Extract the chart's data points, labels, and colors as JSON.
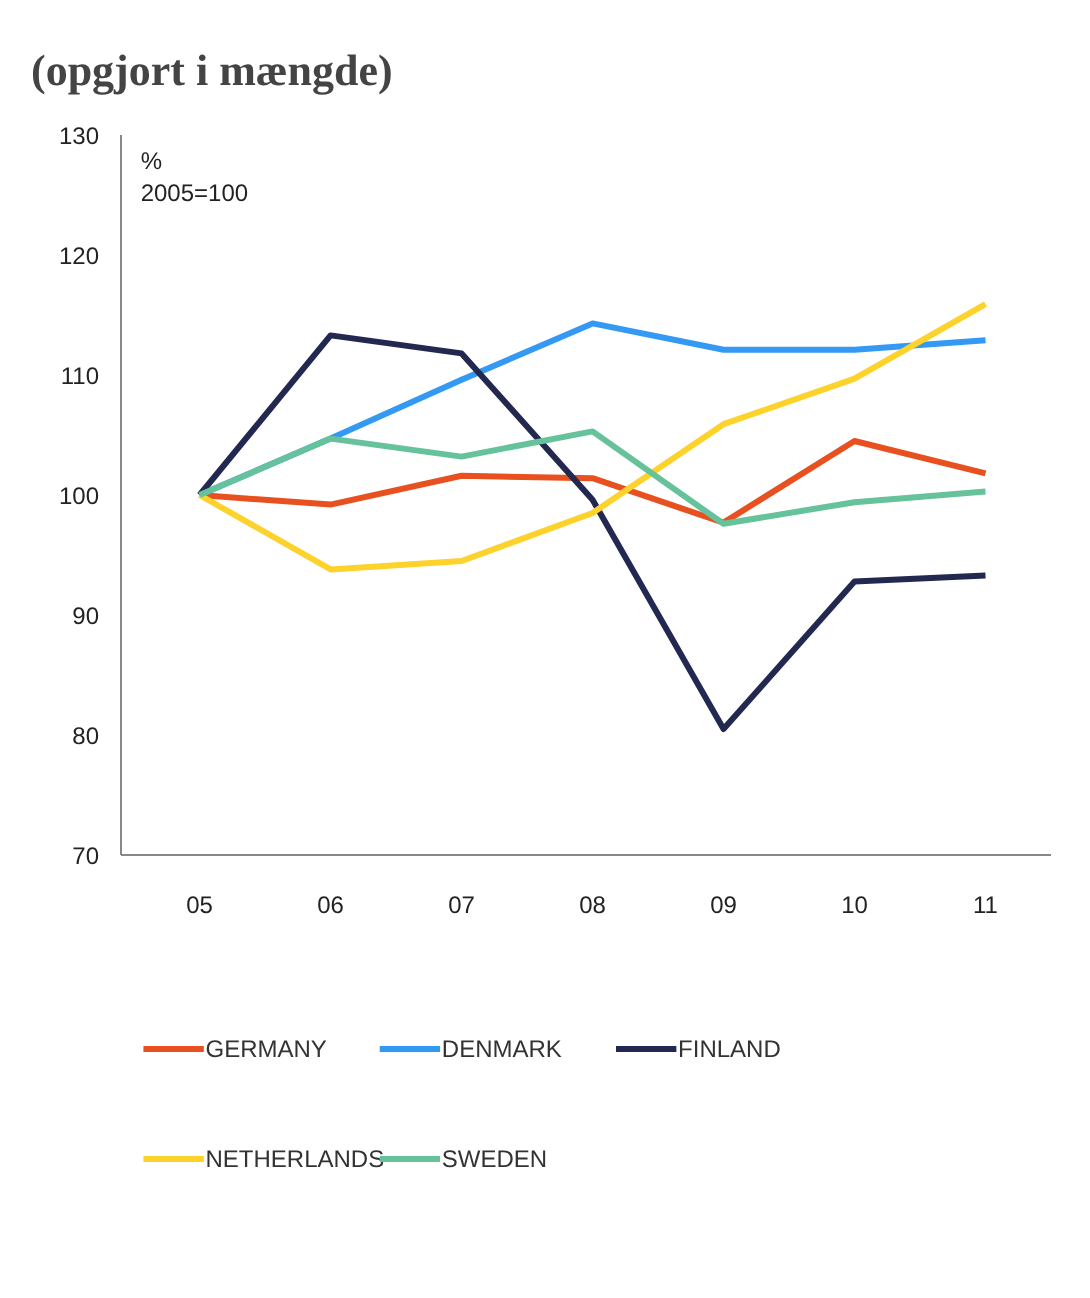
{
  "chart_data": {
    "type": "line",
    "title": "(opgjort i mængde)",
    "ylabel": "%",
    "annotations": [
      "2005=100"
    ],
    "categories": [
      "05",
      "06",
      "07",
      "08",
      "09",
      "10",
      "11"
    ],
    "series": [
      {
        "name": "GERMANY",
        "color": "#e8501f",
        "values": [
          100,
          99.2,
          101.6,
          101.4,
          97.7,
          104.5,
          101.8
        ]
      },
      {
        "name": "DENMARK",
        "color": "#3399f3",
        "values": [
          100,
          104.7,
          109.6,
          114.3,
          112.1,
          112.1,
          112.9
        ]
      },
      {
        "name": "FINLAND",
        "color": "#22284f",
        "values": [
          100,
          113.3,
          111.8,
          99.6,
          80.5,
          92.8,
          93.3
        ]
      },
      {
        "name": "NETHERLANDS",
        "color": "#fdd22a",
        "values": [
          100,
          93.8,
          94.5,
          98.5,
          105.9,
          109.7,
          115.9
        ]
      },
      {
        "name": "SWEDEN",
        "color": "#66c29a",
        "values": [
          100,
          104.7,
          103.2,
          105.3,
          97.6,
          99.4,
          100.3
        ]
      }
    ],
    "ylim": [
      70,
      130
    ],
    "yticks": [
      70,
      80,
      90,
      100,
      110,
      120,
      130
    ],
    "grid": false,
    "legend": "bottom",
    "marker": "none",
    "line_style": "solid"
  }
}
